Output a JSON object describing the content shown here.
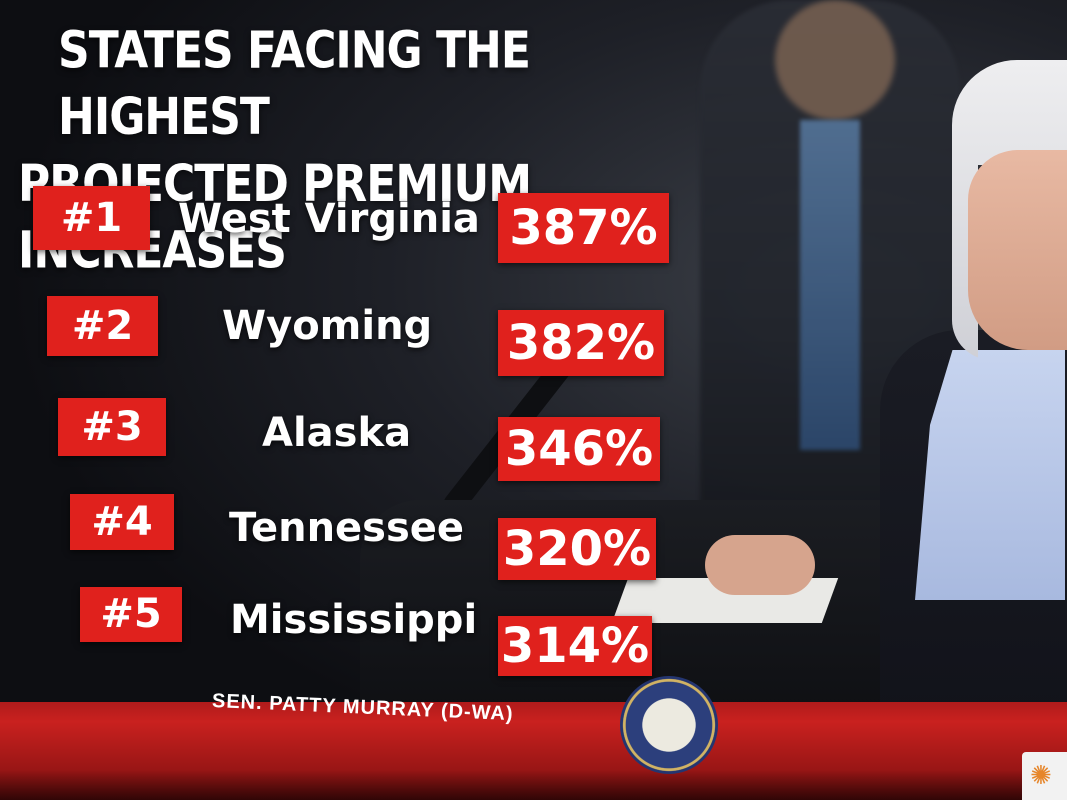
{
  "graphic": {
    "headline_line1": "STATES FACING THE HIGHEST",
    "headline_line2": "PROJECTED PREMIUM INCREASES",
    "rankings": [
      {
        "rank": "#1",
        "state": "West Virginia",
        "percent": "387%"
      },
      {
        "rank": "#2",
        "state": "Wyoming",
        "percent": "382%"
      },
      {
        "rank": "#3",
        "state": "Alaska",
        "percent": "346%"
      },
      {
        "rank": "#4",
        "state": "Tennessee",
        "percent": "320%"
      },
      {
        "rank": "#5",
        "state": "Mississippi",
        "percent": "314%"
      }
    ],
    "speaker_credit": "SEN. PATTY MURRAY (D-WA)"
  },
  "colors": {
    "accent_red": "#e0211d",
    "text_white": "#ffffff"
  },
  "icons": {
    "seal": "us-senate-seal-icon",
    "network_logo": "nbc-peacock-icon"
  }
}
